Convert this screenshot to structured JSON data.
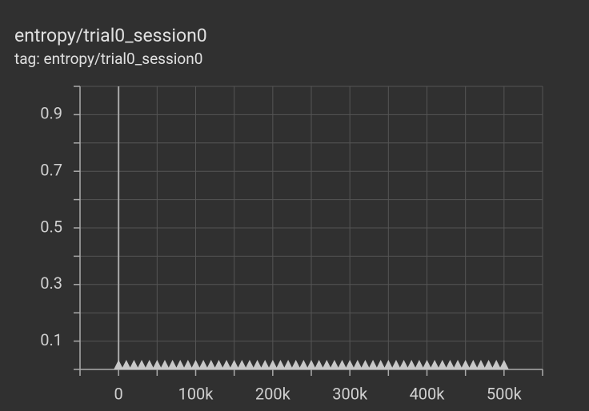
{
  "chart_data": {
    "type": "scatter",
    "title": "entropy/trial0_session0",
    "subtitle": "tag: entropy/trial0_session0",
    "xlim": [
      -50000,
      550000
    ],
    "xticks": [
      {
        "value": 0,
        "label": "0"
      },
      {
        "value": 100000,
        "label": "100k"
      },
      {
        "value": 200000,
        "label": "200k"
      },
      {
        "value": 300000,
        "label": "300k"
      },
      {
        "value": 400000,
        "label": "400k"
      },
      {
        "value": 500000,
        "label": "500k"
      }
    ],
    "xticks_minor": [
      -50000,
      50000,
      150000,
      250000,
      350000,
      450000,
      550000
    ],
    "ylim": [
      0,
      1
    ],
    "yticks": [
      0.1,
      0.3,
      0.5,
      0.7,
      0.9
    ],
    "yticks_minor": [
      0,
      0.2,
      0.4,
      0.6,
      0.8,
      1
    ],
    "grid": true,
    "series": [
      {
        "color": "#c8c8c8",
        "x": [
          0,
          10000,
          20000,
          30000,
          40000,
          50000,
          60000,
          70000,
          80000,
          90000,
          100000,
          110000,
          120000,
          130000,
          140000,
          150000,
          160000,
          170000,
          180000,
          190000,
          200000,
          210000,
          220000,
          230000,
          240000,
          250000,
          260000,
          270000,
          280000,
          290000,
          300000,
          310000,
          320000,
          330000,
          340000,
          350000,
          360000,
          370000,
          380000,
          390000,
          400000,
          410000,
          420000,
          430000,
          440000,
          450000,
          460000,
          470000,
          480000,
          490000,
          500000
        ],
        "values": [
          0,
          0,
          0,
          0,
          0,
          0,
          0,
          0,
          0,
          0,
          0,
          0,
          0,
          0,
          0,
          0,
          0,
          0,
          0,
          0,
          0,
          0,
          0,
          0,
          0,
          0,
          0,
          0,
          0,
          0,
          0,
          0,
          0,
          0,
          0,
          0,
          0,
          0,
          0,
          0,
          0,
          0,
          0,
          0,
          0,
          0,
          0,
          0,
          0,
          0,
          0
        ]
      }
    ]
  }
}
